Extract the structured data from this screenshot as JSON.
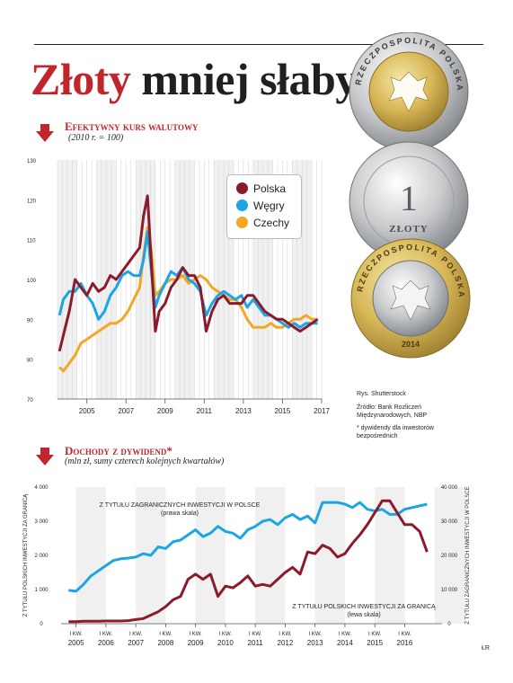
{
  "header": {
    "title_part1": "Złoty",
    "title_part2": "mniej słaby"
  },
  "coins": {
    "coin1_text": "RZECZPOSPOLITA POLSKA",
    "coin2_value": "1",
    "coin2_unit": "ZŁOTY",
    "coin3_text": "RZECZPOSPOLITA POLSKA",
    "coin3_year": "2014"
  },
  "notes": {
    "credit": "Rys. Shutterstock",
    "source_line1": "Źródło: Bank Rozliczeń",
    "source_line2": "Międzynarodowych, NBP",
    "footnote_line1": "* dywidendy dla inwestorów",
    "footnote_line2": "bezpośrednich"
  },
  "footer": {
    "corner_mark": "ŁR"
  },
  "colors": {
    "polska": "#8b1a2b",
    "wegry": "#1ba6e3",
    "czechy": "#f5a623",
    "accent": "#c0272d",
    "grid": "#d9d9d9",
    "bg_band": "#f0f0f0"
  },
  "chart_data": [
    {
      "type": "line",
      "title": "Efektywny kurs walutowy",
      "subtitle": "(2010 r. = 100)",
      "xlabel": "",
      "ylabel": "",
      "xlim": [
        2004,
        2017.5
      ],
      "ylim": [
        70,
        130
      ],
      "yticks": [
        "130",
        "120",
        "110",
        "100",
        "90",
        "80",
        "70"
      ],
      "xticks": [
        "2005",
        "2007",
        "2009",
        "2011",
        "2013",
        "2015",
        "2017"
      ],
      "grid": true,
      "legend": "top-right",
      "series": [
        {
          "name": "Polska",
          "x": [
            2004.1,
            2004.3,
            2004.6,
            2004.9,
            2005.2,
            2005.5,
            2005.8,
            2006.1,
            2006.4,
            2006.7,
            2007.0,
            2007.3,
            2007.6,
            2007.9,
            2008.2,
            2008.4,
            2008.6,
            2008.8,
            2009.0,
            2009.2,
            2009.5,
            2009.8,
            2010.1,
            2010.4,
            2010.7,
            2011.0,
            2011.3,
            2011.6,
            2011.9,
            2012.2,
            2012.5,
            2012.8,
            2013.1,
            2013.4,
            2013.7,
            2014.0,
            2014.3,
            2014.6,
            2014.9,
            2015.2,
            2015.5,
            2015.8,
            2016.1,
            2016.4,
            2016.7,
            2017.0,
            2017.3
          ],
          "values": [
            82,
            86,
            92,
            100,
            98,
            96,
            99,
            97,
            98,
            101,
            100,
            102,
            104,
            106,
            108,
            116,
            121,
            104,
            87,
            92,
            94,
            98,
            100,
            103,
            101,
            101,
            98,
            87,
            92,
            95,
            96,
            94,
            94,
            94,
            96,
            96,
            94,
            92,
            91,
            90,
            90,
            89,
            88,
            87,
            88,
            89,
            90
          ]
        },
        {
          "name": "Węgry",
          "x": [
            2004.1,
            2004.3,
            2004.6,
            2004.9,
            2005.2,
            2005.5,
            2005.8,
            2006.1,
            2006.4,
            2006.7,
            2007.0,
            2007.3,
            2007.6,
            2007.9,
            2008.2,
            2008.4,
            2008.6,
            2008.8,
            2009.0,
            2009.2,
            2009.5,
            2009.8,
            2010.1,
            2010.4,
            2010.7,
            2011.0,
            2011.3,
            2011.6,
            2011.9,
            2012.2,
            2012.5,
            2012.8,
            2013.1,
            2013.4,
            2013.7,
            2014.0,
            2014.3,
            2014.6,
            2014.9,
            2015.2,
            2015.5,
            2015.8,
            2016.1,
            2016.4,
            2016.7,
            2017.0,
            2017.3
          ],
          "values": [
            91,
            95,
            97,
            97,
            99,
            96,
            94,
            90,
            92,
            96,
            98,
            101,
            102,
            101,
            101,
            105,
            112,
            102,
            93,
            96,
            99,
            102,
            101,
            103,
            100,
            99,
            97,
            91,
            94,
            96,
            97,
            96,
            95,
            96,
            93,
            95,
            93,
            91,
            91,
            90,
            89,
            88,
            89,
            88,
            89,
            89,
            89
          ]
        },
        {
          "name": "Czechy",
          "x": [
            2004.1,
            2004.3,
            2004.6,
            2004.9,
            2005.2,
            2005.5,
            2005.8,
            2006.1,
            2006.4,
            2006.7,
            2007.0,
            2007.3,
            2007.6,
            2007.9,
            2008.2,
            2008.4,
            2008.6,
            2008.8,
            2009.0,
            2009.2,
            2009.5,
            2009.8,
            2010.1,
            2010.4,
            2010.7,
            2011.0,
            2011.3,
            2011.6,
            2011.9,
            2012.2,
            2012.5,
            2012.8,
            2013.1,
            2013.4,
            2013.7,
            2014.0,
            2014.3,
            2014.6,
            2014.9,
            2015.2,
            2015.5,
            2015.8,
            2016.1,
            2016.4,
            2016.7,
            2017.0,
            2017.3
          ],
          "values": [
            78,
            77,
            79,
            81,
            84,
            85,
            86,
            87,
            88,
            89,
            89,
            90,
            92,
            95,
            98,
            106,
            113,
            107,
            96,
            97,
            99,
            100,
            100,
            101,
            99,
            100,
            101,
            100,
            98,
            97,
            96,
            95,
            95,
            93,
            90,
            88,
            88,
            88,
            89,
            88,
            88,
            89,
            90,
            90,
            91,
            90,
            90
          ]
        }
      ]
    },
    {
      "type": "line",
      "title": "Dochody z dywidend*",
      "subtitle": "(mln zł, sumy czterech kolejnych kwartałów)",
      "xlabel": "",
      "ylabel_left": "Z TYTUŁU POLSKICH INWESTYCJI ZA GRANICĄ",
      "ylabel_right": "Z TYTUŁU ZAGRANICZNYCH INWESTYCJI W POLSCE",
      "ylim_left": [
        0,
        4000
      ],
      "ylim_right": [
        0,
        40000
      ],
      "yticks_left": [
        "4 000",
        "3 000",
        "2 000",
        "1 000",
        "0"
      ],
      "yticks_right": [
        "40 000",
        "30 000",
        "20 000",
        "10 000",
        "0"
      ],
      "quarter_label": "I KW.",
      "xticks": [
        "2005",
        "2006",
        "2007",
        "2008",
        "2009",
        "2010",
        "2011",
        "2012",
        "2013",
        "2014",
        "2015",
        "2016"
      ],
      "grid": false,
      "series": [
        {
          "name": "Z TYTUŁU ZAGRANICZNYCH INWESTYCJI W POLSCE",
          "axis_note": "(prawa skala)",
          "axis": "right",
          "x": [
            2004.75,
            2005.0,
            2005.25,
            2005.5,
            2005.75,
            2006.0,
            2006.25,
            2006.5,
            2006.75,
            2007.0,
            2007.25,
            2007.5,
            2007.75,
            2008.0,
            2008.25,
            2008.5,
            2008.75,
            2009.0,
            2009.25,
            2009.5,
            2009.75,
            2010.0,
            2010.25,
            2010.5,
            2010.75,
            2011.0,
            2011.25,
            2011.5,
            2011.75,
            2012.0,
            2012.25,
            2012.5,
            2012.75,
            2013.0,
            2013.25,
            2013.5,
            2013.75,
            2014.0,
            2014.25,
            2014.5,
            2014.75,
            2015.0,
            2015.25,
            2015.5,
            2015.75,
            2016.0,
            2016.25,
            2016.5,
            2016.75
          ],
          "values": [
            9800,
            9500,
            11500,
            14000,
            15500,
            17000,
            18500,
            19000,
            19200,
            19500,
            20500,
            20000,
            22500,
            22000,
            24000,
            24500,
            26000,
            27500,
            25500,
            26500,
            28500,
            27000,
            26500,
            25000,
            27500,
            28500,
            30000,
            30500,
            29000,
            31000,
            32000,
            30500,
            31500,
            29500,
            35500,
            35500,
            35500,
            35000,
            34000,
            35500,
            33500,
            33000,
            33500,
            32000,
            32000,
            33500,
            34000,
            34500,
            35000
          ]
        },
        {
          "name": "Z TYTUŁU POLSKICH INWESTYCJI ZA GRANICĄ",
          "axis_note": "(lewa skala)",
          "axis": "left",
          "x": [
            2004.75,
            2005.0,
            2005.25,
            2005.5,
            2005.75,
            2006.0,
            2006.25,
            2006.5,
            2006.75,
            2007.0,
            2007.25,
            2007.5,
            2007.75,
            2008.0,
            2008.25,
            2008.5,
            2008.75,
            2009.0,
            2009.25,
            2009.5,
            2009.75,
            2010.0,
            2010.25,
            2010.5,
            2010.75,
            2011.0,
            2011.25,
            2011.5,
            2011.75,
            2012.0,
            2012.25,
            2012.5,
            2012.75,
            2013.0,
            2013.25,
            2013.5,
            2013.75,
            2014.0,
            2014.25,
            2014.5,
            2014.75,
            2015.0,
            2015.25,
            2015.5,
            2015.75,
            2016.0,
            2016.25,
            2016.5,
            2016.75
          ],
          "values": [
            60,
            60,
            70,
            70,
            70,
            80,
            80,
            80,
            90,
            120,
            150,
            250,
            350,
            500,
            700,
            800,
            1300,
            1450,
            1300,
            1450,
            800,
            1100,
            1050,
            1200,
            1400,
            1100,
            1150,
            1100,
            1300,
            1500,
            1650,
            1450,
            2100,
            2050,
            2300,
            2200,
            1950,
            2050,
            2350,
            2600,
            2900,
            3250,
            3600,
            3600,
            3250,
            2900,
            2900,
            2700,
            2100
          ]
        }
      ]
    }
  ]
}
